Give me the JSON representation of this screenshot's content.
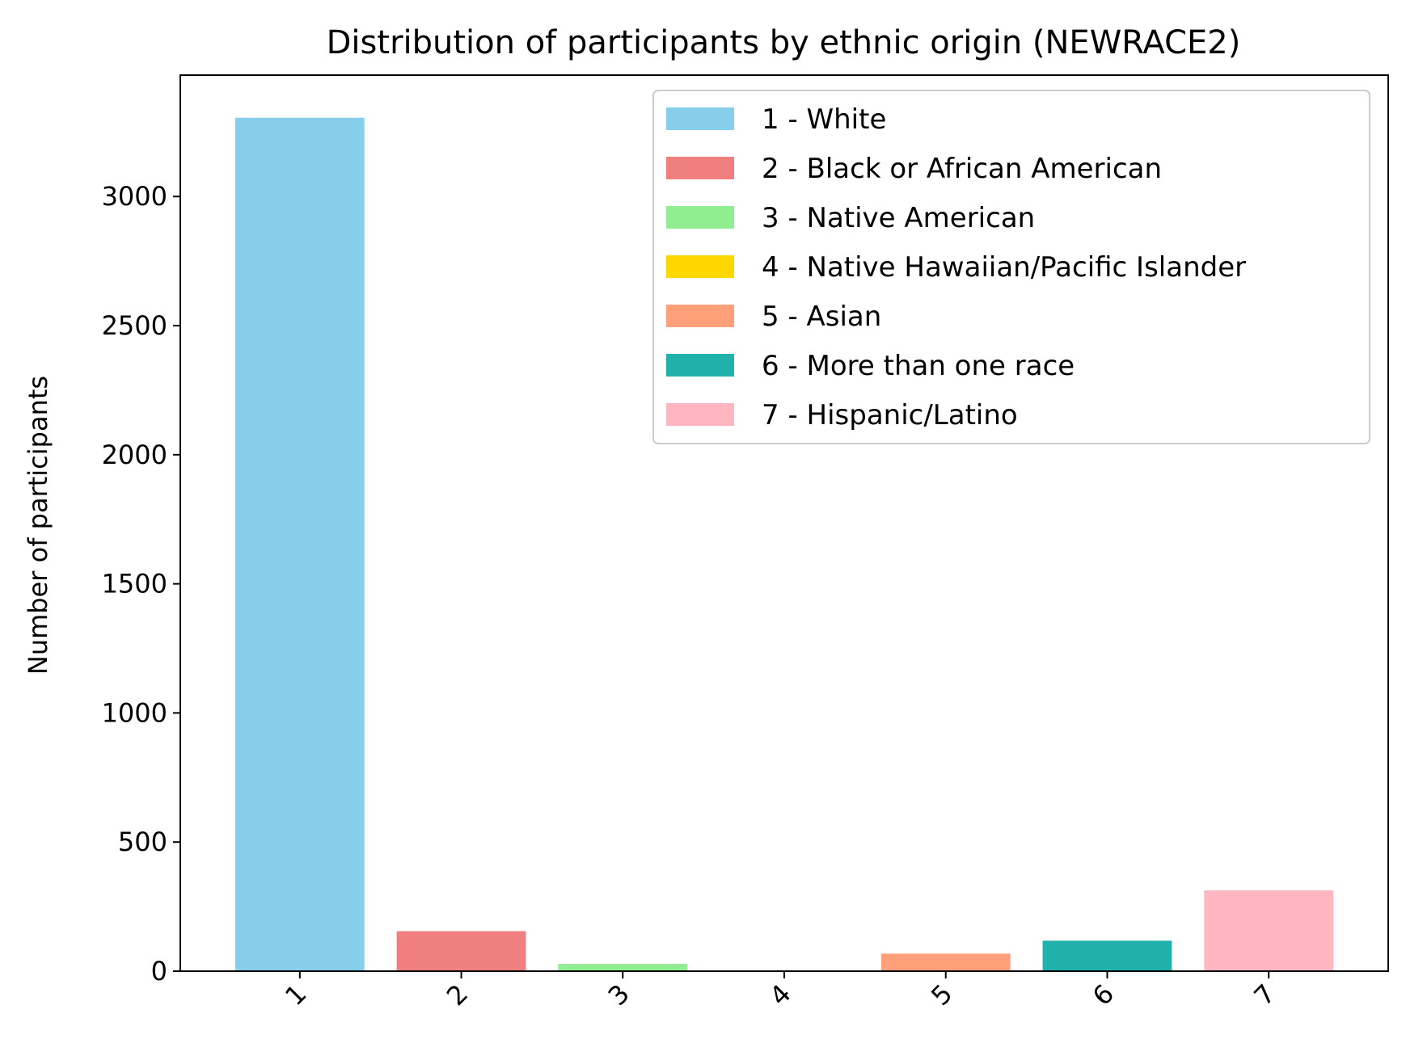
{
  "chart_data": {
    "type": "bar",
    "title": "Distribution of participants by ethnic origin (NEWRACE2)",
    "xlabel": "",
    "ylabel": "Number of participants",
    "categories": [
      "1",
      "2",
      "3",
      "4",
      "5",
      "6",
      "7"
    ],
    "values": [
      3305,
      155,
      28,
      2,
      68,
      118,
      313
    ],
    "colors": [
      "#87CEEB",
      "#F08080",
      "#90EE90",
      "#FFD700",
      "#FFA07A",
      "#20B2AA",
      "#FFB6C1"
    ],
    "legend": [
      "1 - White",
      "2 - Black or African American",
      "3 - Native American",
      "4 - Native Hawaiian/Pacific Islander",
      "5 - Asian",
      "6 - More than one race",
      "7 - Hispanic/Latino"
    ],
    "legend_position": "upper right",
    "ylim": [
      0,
      3470
    ],
    "yticks": [
      0,
      500,
      1000,
      1500,
      2000,
      2500,
      3000
    ],
    "grid": false
  }
}
